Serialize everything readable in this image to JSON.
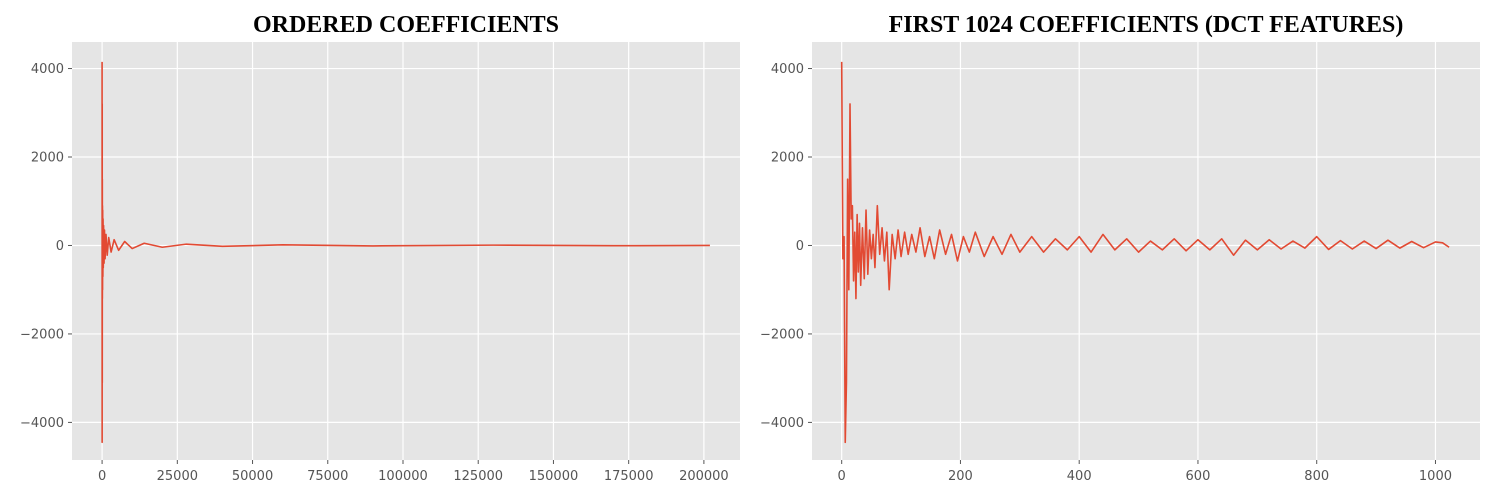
{
  "chart_data": [
    {
      "type": "line",
      "title": "ORDERED COEFFICIENTS",
      "xlabel": "",
      "ylabel": "",
      "xlim": [
        -10000,
        212000
      ],
      "ylim": [
        -4850,
        4600
      ],
      "xticks": [
        0,
        25000,
        50000,
        75000,
        100000,
        125000,
        150000,
        175000,
        200000
      ],
      "xtick_labels": [
        "0",
        "25000",
        "50000",
        "75000",
        "100000",
        "125000",
        "150000",
        "175000",
        "200000"
      ],
      "yticks": [
        -4000,
        -2000,
        0,
        2000,
        4000
      ],
      "ytick_labels": [
        "−4000",
        "−2000",
        "0",
        "2000",
        "4000"
      ],
      "grid": true,
      "line_color": "#e24a33",
      "series": [
        {
          "x": [
            0,
            20,
            40,
            60,
            80,
            100,
            130,
            160,
            200,
            260,
            320,
            400,
            500,
            650,
            800,
            1000,
            1300,
            1700,
            2200,
            3000,
            4000,
            5500,
            7500,
            10000,
            14000,
            20000,
            28000,
            40000,
            60000,
            90000,
            130000,
            170000,
            202000
          ],
          "values": [
            4150,
            -4450,
            3200,
            -3100,
            1500,
            -1200,
            900,
            -1000,
            800,
            -700,
            600,
            -500,
            450,
            -400,
            350,
            -300,
            250,
            -220,
            180,
            -150,
            130,
            -110,
            90,
            -70,
            50,
            -40,
            30,
            -20,
            15,
            -10,
            8,
            -5,
            0
          ]
        }
      ]
    },
    {
      "type": "line",
      "title": "FIRST 1024 COEFFICIENTS (DCT FEATURES)",
      "xlabel": "",
      "ylabel": "",
      "xlim": [
        -50,
        1075
      ],
      "ylim": [
        -4850,
        4600
      ],
      "xticks": [
        0,
        200,
        400,
        600,
        800,
        1000
      ],
      "xtick_labels": [
        "0",
        "200",
        "400",
        "600",
        "800",
        "1000"
      ],
      "yticks": [
        -4000,
        -2000,
        0,
        2000,
        4000
      ],
      "ytick_labels": [
        "−4000",
        "−2000",
        "0",
        "2000",
        "4000"
      ],
      "grid": true,
      "line_color": "#e24a33",
      "series": [
        {
          "x": [
            0,
            2,
            4,
            6,
            8,
            10,
            12,
            14,
            16,
            18,
            20,
            22,
            24,
            26,
            28,
            30,
            32,
            35,
            38,
            41,
            44,
            47,
            50,
            53,
            56,
            60,
            64,
            68,
            72,
            76,
            80,
            85,
            90,
            95,
            100,
            106,
            112,
            118,
            125,
            132,
            140,
            148,
            156,
            165,
            175,
            185,
            195,
            205,
            215,
            225,
            240,
            255,
            270,
            285,
            300,
            320,
            340,
            360,
            380,
            400,
            420,
            440,
            460,
            480,
            500,
            520,
            540,
            560,
            580,
            600,
            620,
            640,
            660,
            680,
            700,
            720,
            740,
            760,
            780,
            800,
            820,
            840,
            860,
            880,
            900,
            920,
            940,
            960,
            980,
            1000,
            1012,
            1023
          ],
          "values": [
            4150,
            -300,
            200,
            -4450,
            -3100,
            1500,
            -1000,
            3200,
            600,
            900,
            -800,
            300,
            -1200,
            700,
            -600,
            500,
            -900,
            400,
            -750,
            800,
            -650,
            350,
            -300,
            250,
            -500,
            900,
            -200,
            400,
            -350,
            300,
            -1000,
            250,
            -300,
            350,
            -250,
            300,
            -200,
            250,
            -150,
            400,
            -250,
            200,
            -300,
            350,
            -200,
            250,
            -350,
            200,
            -150,
            300,
            -250,
            200,
            -200,
            250,
            -150,
            200,
            -150,
            150,
            -100,
            200,
            -150,
            250,
            -100,
            150,
            -150,
            100,
            -100,
            150,
            -120,
            130,
            -100,
            150,
            -220,
            120,
            -100,
            130,
            -80,
            100,
            -60,
            200,
            -90,
            110,
            -80,
            100,
            -70,
            120,
            -60,
            90,
            -50,
            80,
            60,
            -40
          ]
        }
      ]
    }
  ]
}
